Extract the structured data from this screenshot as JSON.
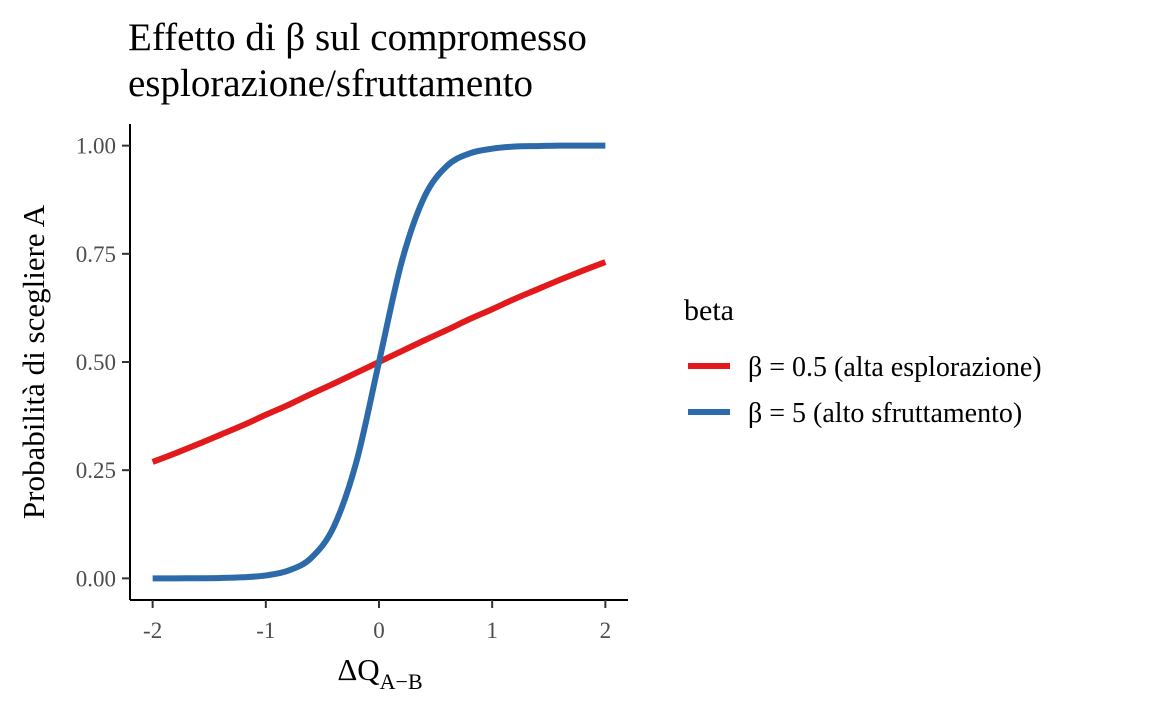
{
  "chart_data": {
    "type": "line",
    "title_lines": [
      "Effetto di β sul compromesso",
      "esplorazione/sfruttamento"
    ],
    "xlabel": "ΔQ",
    "xlabel_subscript": "A−B",
    "ylabel": "Probabilità di scegliere A",
    "xlim": [
      -2.2,
      2.2
    ],
    "ylim": [
      -0.05,
      1.05
    ],
    "x_ticks": [
      -2,
      -1,
      0,
      1,
      2
    ],
    "x_tick_labels": [
      "-2",
      "-1",
      "0",
      "1",
      "2"
    ],
    "y_ticks": [
      0,
      0.25,
      0.5,
      0.75,
      1
    ],
    "y_tick_labels": [
      "0.00",
      "0.25",
      "0.50",
      "0.75",
      "1.00"
    ],
    "x": [
      -2.0,
      -1.8,
      -1.6,
      -1.4,
      -1.2,
      -1.0,
      -0.8,
      -0.6,
      -0.4,
      -0.2,
      0.0,
      0.2,
      0.4,
      0.6,
      0.8,
      1.0,
      1.2,
      1.4,
      1.6,
      1.8,
      2.0
    ],
    "series": [
      {
        "name": "β = 0.5 (alta esplorazione)",
        "color": "#e31a1c",
        "values": [
          0.269,
          0.289,
          0.31,
          0.332,
          0.354,
          0.378,
          0.401,
          0.426,
          0.45,
          0.475,
          0.5,
          0.525,
          0.55,
          0.574,
          0.599,
          0.622,
          0.646,
          0.668,
          0.69,
          0.711,
          0.731
        ]
      },
      {
        "name": "β = 5 (alto sfruttamento)",
        "color": "#2c6aaa",
        "values": [
          0.0,
          0.0001,
          0.0003,
          0.0009,
          0.0025,
          0.0067,
          0.018,
          0.047,
          0.119,
          0.269,
          0.5,
          0.731,
          0.881,
          0.953,
          0.982,
          0.993,
          0.998,
          0.999,
          1.0,
          1.0,
          1.0
        ]
      }
    ],
    "legend": {
      "title": "beta",
      "placement": "right"
    },
    "grid": false
  }
}
